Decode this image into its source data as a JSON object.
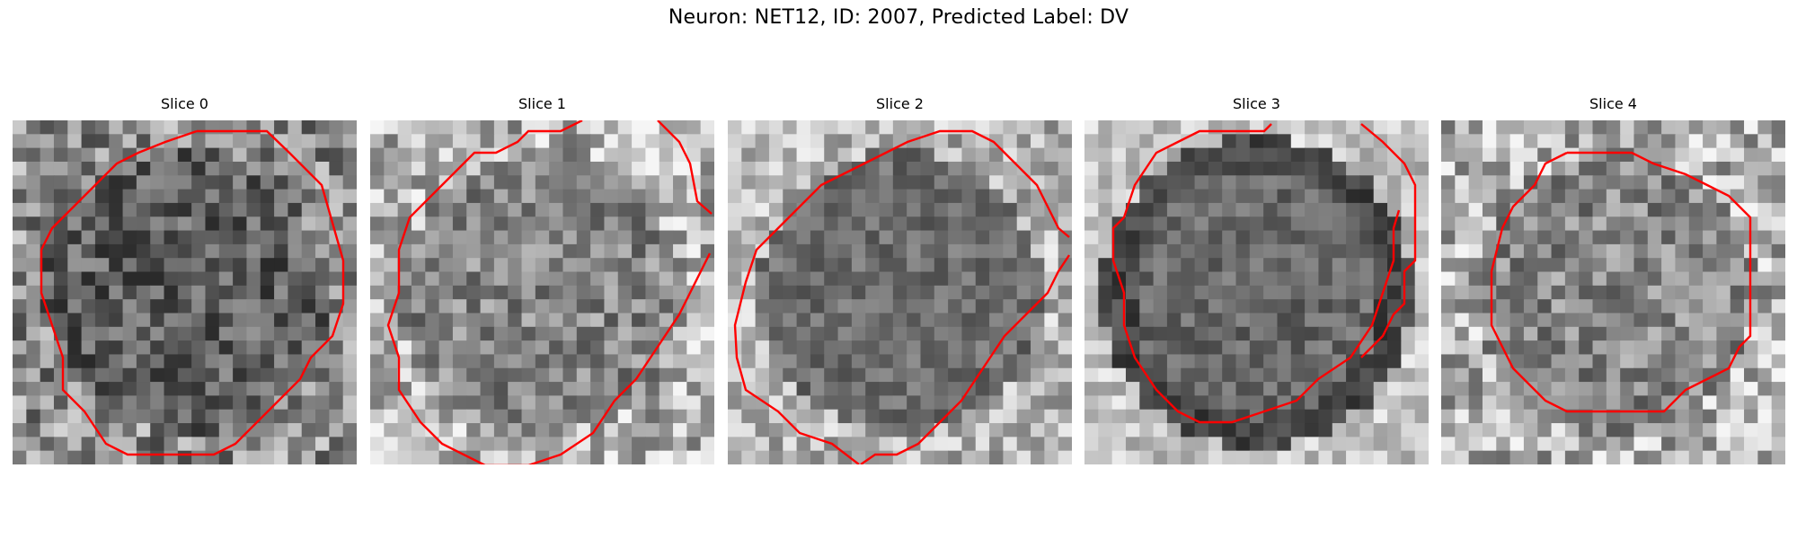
{
  "figure": {
    "title": "Neuron: NET12, ID: 2007, Predicted Label: DV",
    "contour_color": "#ff0000"
  },
  "panels": [
    {
      "title": "Slice 0",
      "tone": "mid",
      "seed": 11
    },
    {
      "title": "Slice 1",
      "tone": "light",
      "seed": 23
    },
    {
      "title": "Slice 2",
      "tone": "dark",
      "seed": 37
    },
    {
      "title": "Slice 3",
      "tone": "smooth",
      "seed": 41
    },
    {
      "title": "Slice 4",
      "tone": "light",
      "seed": 53
    }
  ]
}
